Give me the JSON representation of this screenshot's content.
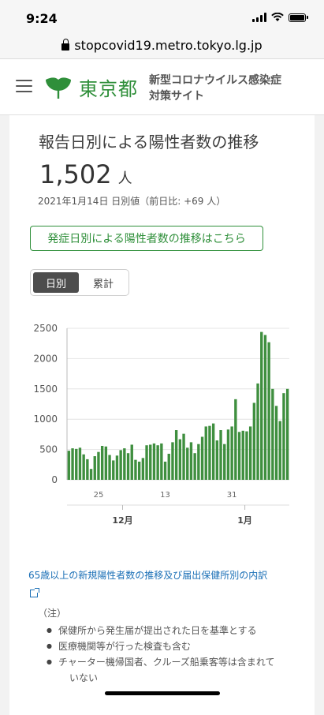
{
  "status_bar": {
    "time": "9:24"
  },
  "browser": {
    "url": "stopcovid19.metro.tokyo.lg.jp"
  },
  "header": {
    "logo_text": "東京都",
    "site_title_line1": "新型コロナウイルス感染症",
    "site_title_line2": "対策サイト"
  },
  "card": {
    "title": "報告日別による陽性者数の推移",
    "number": "1,502",
    "unit": "人",
    "sub_info": "2021年1月14日 日別値（前日比: +69 人）",
    "link_button": "発症日別による陽性者数の推移はこちら",
    "toggle": {
      "daily": "日別",
      "cumulative": "累計"
    }
  },
  "chart_data": {
    "type": "bar",
    "color": "#3f8f3f",
    "ylim": [
      0,
      2500
    ],
    "yticks": [
      "0",
      "500",
      "1000",
      "1500",
      "2000",
      "2500"
    ],
    "xticks": [
      {
        "index": 8,
        "label": "25"
      },
      {
        "index": 26,
        "label": "13"
      },
      {
        "index": 44,
        "label": "31"
      }
    ],
    "month_labels": [
      {
        "index": 15,
        "label": "12月"
      },
      {
        "index": 48,
        "label": "1月"
      }
    ],
    "values": [
      480,
      520,
      510,
      530,
      420,
      340,
      180,
      390,
      460,
      560,
      550,
      410,
      320,
      400,
      490,
      520,
      440,
      580,
      330,
      300,
      360,
      570,
      580,
      600,
      570,
      600,
      300,
      430,
      620,
      820,
      670,
      760,
      530,
      620,
      440,
      590,
      710,
      880,
      890,
      930,
      650,
      820,
      590,
      830,
      880,
      1330,
      790,
      810,
      800,
      880,
      1270,
      1590,
      2440,
      2390,
      2270,
      1500,
      1220,
      970,
      1430,
      1500
    ]
  },
  "detail_link": "65歳以上の新規陽性者数の推移及び届出保健所別の内訳",
  "notes": {
    "heading": "（注）",
    "items": [
      "保健所から発生届が提出された日を基準とする",
      "医療機関等が行った検査も含む",
      "チャーター機帰国者、クルーズ船乗客等は含まれて",
      "いない"
    ]
  }
}
